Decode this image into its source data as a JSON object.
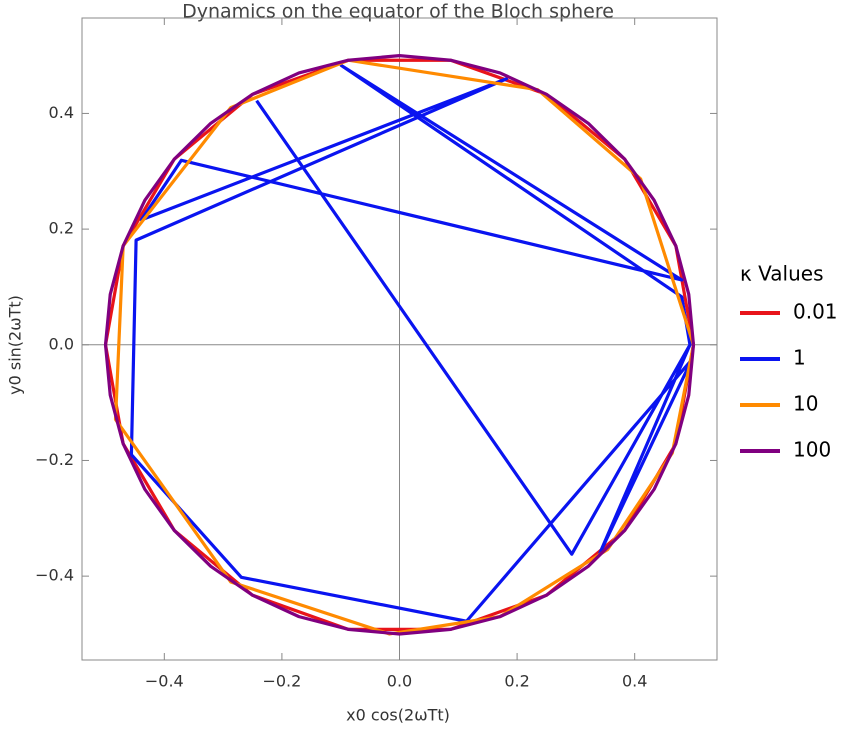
{
  "chart_data": {
    "type": "line",
    "title": "Dynamics on the equator of the Bloch sphere",
    "x_label": "x0 cos(2ωTt)",
    "y_label": "y0 sin(2ωTt)",
    "legend_title": "κ Values",
    "xlim": [
      -0.54,
      0.54
    ],
    "ylim": [
      -0.545,
      0.565
    ],
    "xticks": [
      {
        "value": -0.4,
        "label": "−0.4"
      },
      {
        "value": -0.2,
        "label": "−0.2"
      },
      {
        "value": 0,
        "label": "0.0"
      },
      {
        "value": 0.2,
        "label": "0.2"
      },
      {
        "value": 0.4,
        "label": "0.4"
      }
    ],
    "yticks": [
      {
        "value": -0.4,
        "label": "−0.4"
      },
      {
        "value": -0.2,
        "label": "−0.2"
      },
      {
        "value": 0,
        "label": "0.0"
      },
      {
        "value": 0.2,
        "label": "0.2"
      },
      {
        "value": 0.4,
        "label": "0.4"
      }
    ],
    "series": [
      {
        "name": "0.01",
        "color": "#e8141a",
        "x": [
          0.5,
          0.47,
          0.383,
          0.25,
          0.087,
          -0.087,
          -0.25,
          -0.383,
          -0.47,
          -0.5,
          -0.47,
          -0.383,
          -0.25,
          -0.087,
          0.087,
          0.25,
          0.383,
          0.47,
          0.5
        ],
        "values": [
          0,
          0.171,
          0.321,
          0.433,
          0.492,
          0.492,
          0.433,
          0.321,
          0.171,
          0,
          -0.171,
          -0.321,
          -0.433,
          -0.492,
          -0.492,
          -0.433,
          -0.321,
          -0.171,
          0
        ]
      },
      {
        "name": "1",
        "color": "#0a14f0",
        "x": [
          0.494,
          0.34,
          0.497,
          0.114,
          -0.269,
          -0.456,
          -0.448,
          0.182,
          -0.439,
          -0.371,
          0.48,
          -0.099,
          0.48,
          0.494,
          0.293,
          -0.243
        ],
        "values": [
          0,
          -0.362,
          -0.026,
          -0.478,
          -0.402,
          -0.19,
          0.181,
          0.46,
          0.216,
          0.319,
          0.112,
          0.483,
          0.083,
          0,
          -0.362,
          0.422
        ]
      },
      {
        "name": "10",
        "color": "#ff8a00",
        "x": [
          0.5,
          0.41,
          0.235,
          -0.087,
          -0.287,
          -0.47,
          -0.483,
          -0.287,
          -0.017,
          0.171,
          0.354,
          0.464,
          0.5
        ],
        "values": [
          0,
          0.287,
          0.441,
          0.492,
          0.41,
          0.171,
          -0.129,
          -0.41,
          -0.5,
          -0.47,
          -0.354,
          -0.187,
          0
        ]
      },
      {
        "name": "100",
        "color": "#800080",
        "x": [
          0.5,
          0.492,
          0.47,
          0.433,
          0.383,
          0.321,
          0.25,
          0.171,
          0.087,
          0,
          -0.087,
          -0.171,
          -0.25,
          -0.321,
          -0.383,
          -0.433,
          -0.47,
          -0.492,
          -0.5,
          -0.492,
          -0.47,
          -0.433,
          -0.383,
          -0.321,
          -0.25,
          -0.171,
          -0.087,
          0,
          0.087,
          0.171,
          0.25,
          0.321,
          0.383,
          0.433,
          0.47,
          0.492,
          0.5
        ],
        "values": [
          0,
          0.087,
          0.171,
          0.25,
          0.321,
          0.383,
          0.433,
          0.47,
          0.492,
          0.5,
          0.492,
          0.47,
          0.433,
          0.383,
          0.321,
          0.25,
          0.171,
          0.087,
          0,
          -0.087,
          -0.171,
          -0.25,
          -0.321,
          -0.383,
          -0.433,
          -0.47,
          -0.492,
          -0.5,
          -0.492,
          -0.47,
          -0.433,
          -0.383,
          -0.321,
          -0.25,
          -0.171,
          -0.087,
          0
        ]
      }
    ]
  }
}
